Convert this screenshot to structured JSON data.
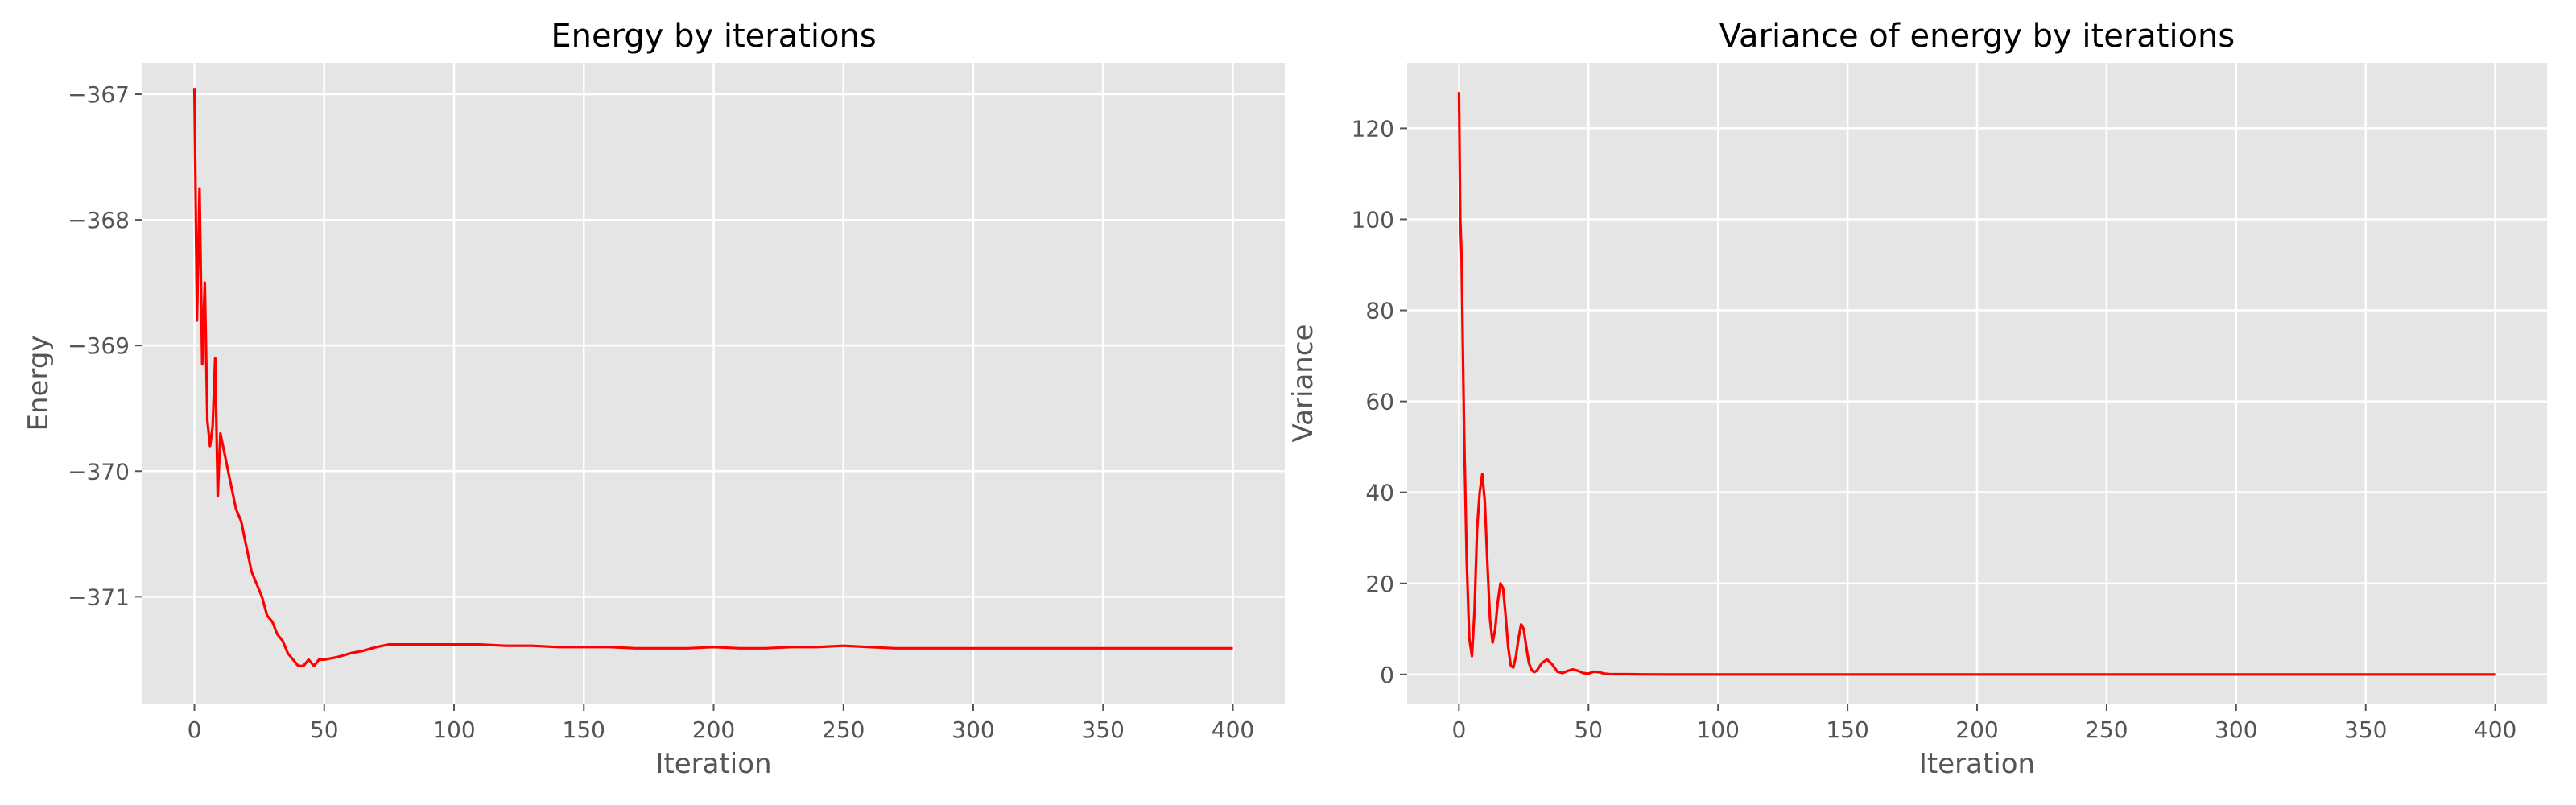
{
  "chart_data": [
    {
      "type": "line",
      "title": "Energy by iterations",
      "xlabel": "Iteration",
      "ylabel": "Energy",
      "xlim": [
        -20,
        420
      ],
      "ylim": [
        -371.85,
        -366.75
      ],
      "xticks": [
        0,
        50,
        100,
        150,
        200,
        250,
        300,
        350,
        400
      ],
      "xtick_labels": [
        "0",
        "50",
        "100",
        "150",
        "200",
        "250",
        "300",
        "350",
        "400"
      ],
      "yticks": [
        -367,
        -368,
        -369,
        -370,
        -371
      ],
      "ytick_labels": [
        "−367",
        "−368",
        "−369",
        "−370",
        "−371"
      ],
      "grid": true,
      "color": "#ff0000",
      "series": [
        {
          "x": [
            0,
            1,
            2,
            3,
            4,
            5,
            6,
            7,
            8,
            9,
            10,
            12,
            14,
            16,
            18,
            20,
            22,
            24,
            26,
            28,
            30,
            32,
            34,
            36,
            38,
            40,
            42,
            44,
            46,
            48,
            50,
            55,
            60,
            65,
            70,
            75,
            80,
            90,
            100,
            110,
            120,
            130,
            140,
            150,
            160,
            170,
            180,
            190,
            200,
            210,
            220,
            230,
            240,
            250,
            260,
            270,
            280,
            290,
            300,
            310,
            320,
            330,
            340,
            350,
            360,
            370,
            380,
            390,
            400
          ],
          "y": [
            -366.95,
            -368.8,
            -367.75,
            -369.15,
            -368.5,
            -369.6,
            -369.8,
            -369.65,
            -369.1,
            -370.2,
            -369.7,
            -369.9,
            -370.1,
            -370.3,
            -370.4,
            -370.6,
            -370.8,
            -370.9,
            -371.0,
            -371.15,
            -371.2,
            -371.3,
            -371.35,
            -371.45,
            -371.5,
            -371.55,
            -371.55,
            -371.5,
            -371.55,
            -371.5,
            -371.5,
            -371.48,
            -371.45,
            -371.43,
            -371.4,
            -371.38,
            -371.38,
            -371.38,
            -371.38,
            -371.38,
            -371.39,
            -371.39,
            -371.4,
            -371.4,
            -371.4,
            -371.41,
            -371.41,
            -371.41,
            -371.4,
            -371.41,
            -371.41,
            -371.4,
            -371.4,
            -371.39,
            -371.4,
            -371.41,
            -371.41,
            -371.41,
            -371.41,
            -371.41,
            -371.41,
            -371.41,
            -371.41,
            -371.41,
            -371.41,
            -371.41,
            -371.41,
            -371.41,
            -371.41
          ]
        }
      ]
    },
    {
      "type": "line",
      "title": "Variance of energy by iterations",
      "xlabel": "Iteration",
      "ylabel": "Variance",
      "xlim": [
        -20,
        420
      ],
      "ylim": [
        -6.4,
        134.4
      ],
      "xticks": [
        0,
        50,
        100,
        150,
        200,
        250,
        300,
        350,
        400
      ],
      "xtick_labels": [
        "0",
        "50",
        "100",
        "150",
        "200",
        "250",
        "300",
        "350",
        "400"
      ],
      "yticks": [
        0,
        20,
        40,
        60,
        80,
        100,
        120
      ],
      "ytick_labels": [
        "0",
        "20",
        "40",
        "60",
        "80",
        "100",
        "120"
      ],
      "grid": true,
      "color": "#ff0000",
      "series": [
        {
          "x": [
            0,
            0.5,
            1,
            1.5,
            2,
            3,
            4,
            5,
            6,
            7,
            8,
            9,
            10,
            11,
            12,
            13,
            14,
            15,
            16,
            17,
            18,
            19,
            20,
            21,
            22,
            23,
            24,
            25,
            26,
            27,
            28,
            29,
            30,
            32,
            34,
            36,
            38,
            40,
            42,
            44,
            46,
            48,
            50,
            52,
            54,
            56,
            58,
            60,
            65,
            70,
            80,
            100,
            150,
            200,
            250,
            300,
            350,
            400
          ],
          "y": [
            128,
            100,
            92,
            72,
            53,
            25,
            8,
            4,
            14,
            32,
            40,
            44,
            38,
            24,
            12,
            7,
            10,
            16,
            20,
            19,
            13,
            6,
            2,
            1.5,
            4,
            8,
            11,
            10,
            6,
            2.5,
            1,
            0.5,
            0.8,
            2.5,
            3.3,
            2.2,
            0.6,
            0.3,
            0.8,
            1.1,
            0.8,
            0.3,
            0.2,
            0.6,
            0.5,
            0.2,
            0.1,
            0.05,
            0.05,
            0.02,
            0,
            0,
            0,
            0,
            0,
            0,
            0,
            0
          ]
        }
      ]
    }
  ]
}
